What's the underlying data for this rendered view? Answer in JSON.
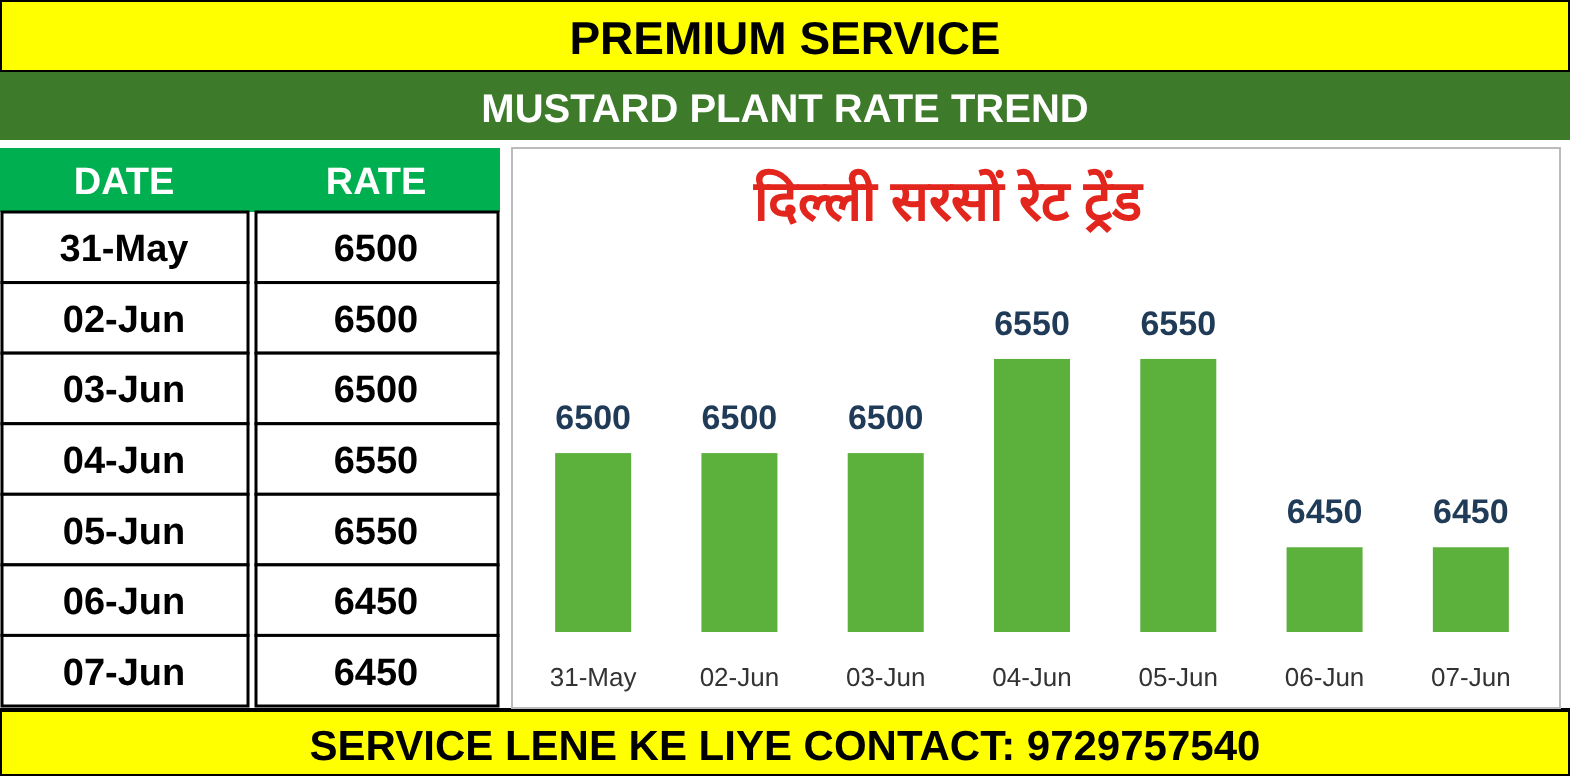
{
  "chart_data": [
    {
      "type": "bar",
      "title": "दिल्ली सरसों रेट ट्रेंड",
      "categories": [
        "31-May",
        "02-Jun",
        "03-Jun",
        "04-Jun",
        "05-Jun",
        "06-Jun",
        "07-Jun"
      ],
      "values": [
        6500,
        6500,
        6500,
        6550,
        6550,
        6450,
        6450
      ],
      "color": "#5cb03c",
      "data_labels": true,
      "ylim": [
        6405,
        6662
      ],
      "annotations": [
        "PREMIUM SERVICE",
        "MUSTARD PLANT RATE TREND",
        "SERVICE LENE KE LIYE CONTACT: 9729757540"
      ]
    },
    {
      "type": "other",
      "annotations": [
        "DATE",
        "RATE"
      ],
      "categories": [
        "31-May",
        "02-Jun",
        "03-Jun",
        "04-Jun",
        "05-Jun",
        "06-Jun",
        "07-Jun"
      ],
      "values": [
        6500,
        6500,
        6500,
        6550,
        6550,
        6450,
        6450
      ],
      "data_labels": true
    }
  ]
}
